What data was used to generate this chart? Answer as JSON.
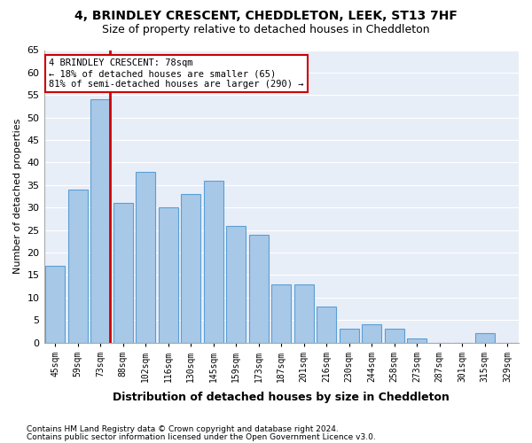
{
  "title1": "4, BRINDLEY CRESCENT, CHEDDLETON, LEEK, ST13 7HF",
  "title2": "Size of property relative to detached houses in Cheddleton",
  "xlabel": "Distribution of detached houses by size in Cheddleton",
  "ylabel": "Number of detached properties",
  "bins": [
    "45sqm",
    "59sqm",
    "73sqm",
    "88sqm",
    "102sqm",
    "116sqm",
    "130sqm",
    "145sqm",
    "159sqm",
    "173sqm",
    "187sqm",
    "201sqm",
    "216sqm",
    "230sqm",
    "244sqm",
    "258sqm",
    "273sqm",
    "287sqm",
    "301sqm",
    "315sqm",
    "329sqm"
  ],
  "values": [
    17,
    34,
    54,
    31,
    38,
    30,
    33,
    36,
    26,
    24,
    13,
    13,
    8,
    3,
    4,
    3,
    1,
    0,
    0,
    2,
    0
  ],
  "bar_color": "#a8c8e8",
  "bar_edge_color": "#5a9fd4",
  "marker_bin_index": 2,
  "marker_color": "#cc0000",
  "annotation_text": "4 BRINDLEY CRESCENT: 78sqm\n← 18% of detached houses are smaller (65)\n81% of semi-detached houses are larger (290) →",
  "annotation_box_color": "#ffffff",
  "annotation_box_edge": "#cc0000",
  "footer1": "Contains HM Land Registry data © Crown copyright and database right 2024.",
  "footer2": "Contains public sector information licensed under the Open Government Licence v3.0.",
  "ylim": [
    0,
    65
  ],
  "yticks": [
    0,
    5,
    10,
    15,
    20,
    25,
    30,
    35,
    40,
    45,
    50,
    55,
    60,
    65
  ],
  "plot_bg_color": "#e8eef8"
}
